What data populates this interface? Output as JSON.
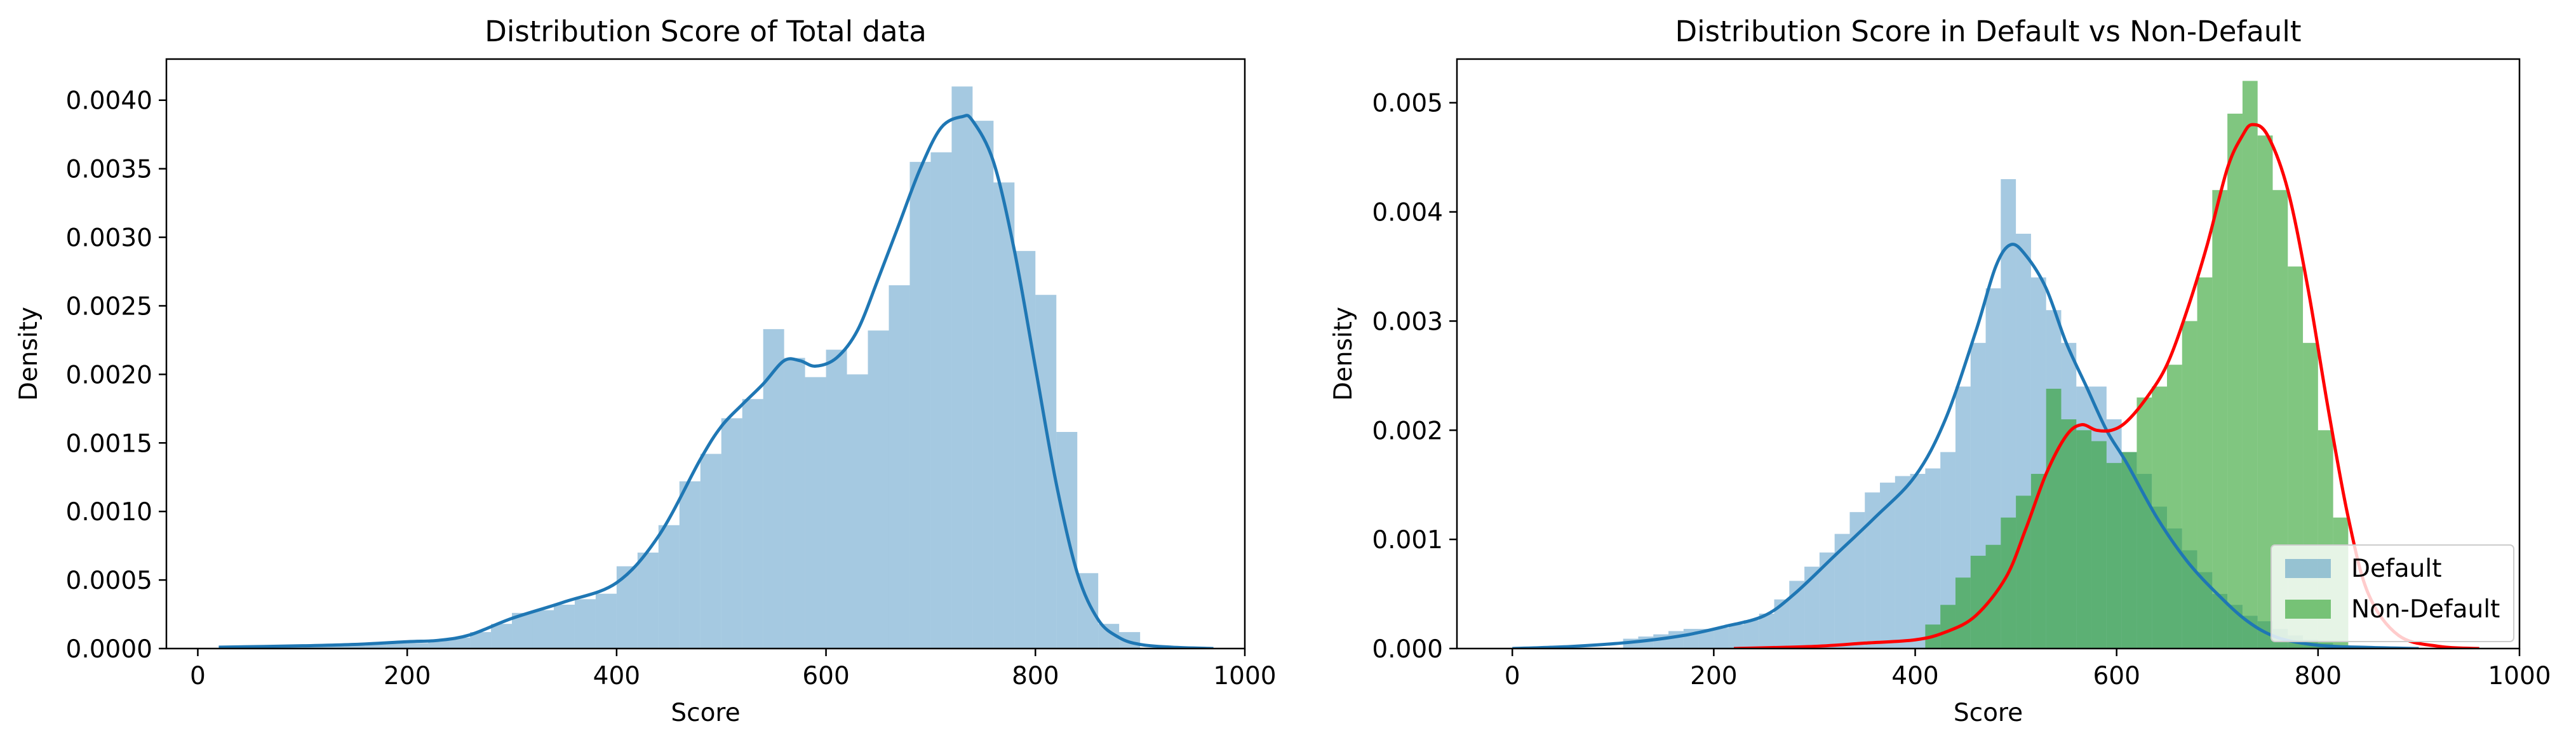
{
  "chart_data": [
    {
      "type": "histogram",
      "title": "Distribution Score of Total data",
      "xlabel": "Score",
      "ylabel": "Density",
      "xlim": [
        -30,
        1000
      ],
      "ylim": [
        0,
        0.0043
      ],
      "xticks": [
        0,
        200,
        400,
        600,
        800,
        1000
      ],
      "xtick_labels": [
        "0",
        "200",
        "400",
        "600",
        "800",
        "1000"
      ],
      "yticks": [
        0,
        0.0005,
        0.001,
        0.0015,
        0.002,
        0.0025,
        0.003,
        0.0035,
        0.004
      ],
      "ytick_labels": [
        "0.0000",
        "0.0005",
        "0.0010",
        "0.0015",
        "0.0020",
        "0.0025",
        "0.0030",
        "0.0035",
        "0.0040"
      ],
      "grid": false,
      "series": [
        {
          "kind": "bars",
          "color": "#1f77b4",
          "opacity": 0.4,
          "bins": [
            [
              20,
              40,
              1e-05
            ],
            [
              40,
              60,
              1e-05
            ],
            [
              60,
              80,
              1e-05
            ],
            [
              80,
              100,
              1e-05
            ],
            [
              100,
              120,
              2e-05
            ],
            [
              120,
              140,
              2e-05
            ],
            [
              140,
              160,
              3e-05
            ],
            [
              160,
              180,
              3e-05
            ],
            [
              180,
              200,
              4e-05
            ],
            [
              200,
              220,
              4e-05
            ],
            [
              220,
              240,
              6e-05
            ],
            [
              240,
              260,
              8e-05
            ],
            [
              260,
              280,
              0.00012
            ],
            [
              280,
              300,
              0.00018
            ],
            [
              300,
              320,
              0.00026
            ],
            [
              320,
              340,
              0.00028
            ],
            [
              340,
              360,
              0.00032
            ],
            [
              360,
              380,
              0.00036
            ],
            [
              380,
              400,
              0.0004
            ],
            [
              400,
              420,
              0.0006
            ],
            [
              420,
              440,
              0.0007
            ],
            [
              440,
              460,
              0.0009
            ],
            [
              460,
              480,
              0.00122
            ],
            [
              480,
              500,
              0.00142
            ],
            [
              500,
              520,
              0.00168
            ],
            [
              520,
              540,
              0.00182
            ],
            [
              540,
              560,
              0.00233
            ],
            [
              560,
              580,
              0.00212
            ],
            [
              580,
              600,
              0.00198
            ],
            [
              600,
              620,
              0.00218
            ],
            [
              620,
              640,
              0.002
            ],
            [
              640,
              660,
              0.00232
            ],
            [
              660,
              680,
              0.00265
            ],
            [
              680,
              700,
              0.00355
            ],
            [
              700,
              720,
              0.00362
            ],
            [
              720,
              740,
              0.0041
            ],
            [
              740,
              760,
              0.00385
            ],
            [
              760,
              780,
              0.0034
            ],
            [
              780,
              800,
              0.0029
            ],
            [
              800,
              820,
              0.00258
            ],
            [
              820,
              840,
              0.00158
            ],
            [
              840,
              860,
              0.00055
            ],
            [
              860,
              880,
              0.00018
            ],
            [
              880,
              900,
              0.00012
            ]
          ]
        },
        {
          "kind": "kde",
          "color": "#1f77b4",
          "x": [
            20,
            100,
            150,
            200,
            230,
            260,
            300,
            350,
            400,
            440,
            480,
            500,
            520,
            540,
            560,
            575,
            590,
            610,
            630,
            650,
            670,
            690,
            710,
            730,
            740,
            760,
            780,
            800,
            820,
            840,
            860,
            880,
            900,
            930,
            970
          ],
          "y": [
            1e-05,
            2e-05,
            3e-05,
            5e-05,
            6e-05,
            0.0001,
            0.00022,
            0.00034,
            0.00048,
            0.00082,
            0.00138,
            0.00162,
            0.00178,
            0.00193,
            0.0021,
            0.0021,
            0.00206,
            0.00212,
            0.00232,
            0.0027,
            0.0031,
            0.0035,
            0.0038,
            0.00388,
            0.00385,
            0.00355,
            0.0029,
            0.00205,
            0.0012,
            0.00055,
            0.00021,
            8e-05,
            3e-05,
            1e-05,
            0.0
          ]
        }
      ]
    },
    {
      "type": "histogram",
      "title": "Distribution Score in Default vs Non-Default",
      "xlabel": "Score",
      "ylabel": "Density",
      "xlim": [
        -55,
        1000
      ],
      "ylim": [
        0,
        0.0054
      ],
      "xticks": [
        0,
        200,
        400,
        600,
        800,
        1000
      ],
      "xtick_labels": [
        "0",
        "200",
        "400",
        "600",
        "800",
        "1000"
      ],
      "yticks": [
        0,
        0.001,
        0.002,
        0.003,
        0.004,
        0.005
      ],
      "ytick_labels": [
        "0.000",
        "0.001",
        "0.002",
        "0.003",
        "0.004",
        "0.005"
      ],
      "grid": false,
      "legend_position": "lower right",
      "legend": [
        "Default",
        "Non-Default"
      ],
      "series": [
        {
          "kind": "bars",
          "name": "Default",
          "color": "#1f77b4",
          "opacity": 0.4,
          "bins": [
            [
              110,
              125,
              9e-05
            ],
            [
              125,
              140,
              0.00011
            ],
            [
              140,
              155,
              0.00013
            ],
            [
              155,
              170,
              0.00016
            ],
            [
              170,
              185,
              0.00018
            ],
            [
              185,
              200,
              0.00018
            ],
            [
              200,
              215,
              0.00019
            ],
            [
              215,
              230,
              0.00022
            ],
            [
              230,
              245,
              0.00026
            ],
            [
              245,
              260,
              0.00032
            ],
            [
              260,
              275,
              0.00045
            ],
            [
              275,
              290,
              0.00062
            ],
            [
              290,
              305,
              0.00075
            ],
            [
              305,
              320,
              0.00088
            ],
            [
              320,
              335,
              0.00105
            ],
            [
              335,
              350,
              0.00125
            ],
            [
              350,
              365,
              0.00143
            ],
            [
              365,
              380,
              0.00152
            ],
            [
              380,
              395,
              0.00158
            ],
            [
              395,
              410,
              0.0016
            ],
            [
              410,
              425,
              0.00165
            ],
            [
              425,
              440,
              0.0018
            ],
            [
              440,
              455,
              0.0024
            ],
            [
              455,
              470,
              0.0028
            ],
            [
              470,
              485,
              0.0033
            ],
            [
              485,
              500,
              0.0043
            ],
            [
              500,
              515,
              0.0038
            ],
            [
              515,
              530,
              0.0034
            ],
            [
              530,
              545,
              0.0031
            ],
            [
              545,
              560,
              0.0028
            ],
            [
              560,
              575,
              0.0024
            ],
            [
              575,
              590,
              0.0024
            ],
            [
              590,
              605,
              0.0021
            ],
            [
              605,
              620,
              0.0018
            ],
            [
              620,
              635,
              0.0016
            ],
            [
              635,
              650,
              0.0013
            ],
            [
              650,
              665,
              0.0011
            ],
            [
              665,
              680,
              0.0009
            ],
            [
              680,
              695,
              0.0007
            ],
            [
              695,
              710,
              0.0005
            ],
            [
              710,
              725,
              0.0004
            ],
            [
              725,
              740,
              0.0003
            ],
            [
              740,
              755,
              0.00025
            ],
            [
              755,
              770,
              0.00018
            ],
            [
              770,
              785,
              0.00012
            ],
            [
              785,
              800,
              8e-05
            ],
            [
              800,
              815,
              5e-05
            ]
          ]
        },
        {
          "kind": "bars",
          "name": "Non-Default",
          "color": "#2ca02c",
          "opacity": 0.6,
          "bins": [
            [
              410,
              425,
              0.00022
            ],
            [
              425,
              440,
              0.0004
            ],
            [
              440,
              455,
              0.00065
            ],
            [
              455,
              470,
              0.00085
            ],
            [
              470,
              485,
              0.00095
            ],
            [
              485,
              500,
              0.0012
            ],
            [
              500,
              515,
              0.0014
            ],
            [
              515,
              530,
              0.0016
            ],
            [
              530,
              545,
              0.00238
            ],
            [
              545,
              560,
              0.0021
            ],
            [
              560,
              575,
              0.002
            ],
            [
              575,
              590,
              0.0019
            ],
            [
              590,
              605,
              0.0017
            ],
            [
              605,
              620,
              0.0018
            ],
            [
              620,
              635,
              0.0023
            ],
            [
              635,
              650,
              0.0024
            ],
            [
              650,
              665,
              0.0026
            ],
            [
              665,
              680,
              0.003
            ],
            [
              680,
              695,
              0.0034
            ],
            [
              695,
              710,
              0.0042
            ],
            [
              710,
              725,
              0.0049
            ],
            [
              725,
              740,
              0.0052
            ],
            [
              740,
              755,
              0.0047
            ],
            [
              755,
              770,
              0.0042
            ],
            [
              770,
              785,
              0.0035
            ],
            [
              785,
              800,
              0.0028
            ],
            [
              800,
              815,
              0.002
            ],
            [
              815,
              830,
              0.0012
            ]
          ]
        },
        {
          "kind": "kde",
          "name": "Default",
          "color": "#1f77b4",
          "x": [
            0,
            60,
            120,
            170,
            210,
            250,
            280,
            320,
            360,
            400,
            430,
            460,
            480,
            495,
            510,
            530,
            550,
            570,
            590,
            610,
            640,
            670,
            700,
            730,
            760,
            800,
            850,
            900
          ],
          "y": [
            0.0,
            2e-05,
            6e-05,
            0.00012,
            0.0002,
            0.0003,
            0.0005,
            0.00085,
            0.0012,
            0.00158,
            0.0021,
            0.0029,
            0.0035,
            0.0037,
            0.0036,
            0.0033,
            0.0028,
            0.0024,
            0.002,
            0.0017,
            0.0012,
            0.0008,
            0.0005,
            0.00025,
            0.0001,
            3e-05,
            1e-05,
            0.0
          ]
        },
        {
          "kind": "kde",
          "name": "Non-Default",
          "color": "#ff0000",
          "x": [
            220,
            300,
            350,
            400,
            430,
            460,
            490,
            510,
            530,
            550,
            565,
            580,
            595,
            610,
            630,
            650,
            670,
            690,
            710,
            725,
            735,
            750,
            770,
            790,
            810,
            830,
            850,
            880,
            920,
            960
          ],
          "y": [
            0.0,
            2e-05,
            5e-05,
            8e-05,
            0.00015,
            0.0003,
            0.00065,
            0.0011,
            0.0016,
            0.00195,
            0.00205,
            0.002,
            0.002,
            0.00208,
            0.0023,
            0.0026,
            0.0031,
            0.0037,
            0.0044,
            0.0047,
            0.0048,
            0.0047,
            0.0042,
            0.0033,
            0.0022,
            0.0012,
            0.0005,
            0.00012,
            2e-05,
            0.0
          ]
        }
      ]
    }
  ]
}
